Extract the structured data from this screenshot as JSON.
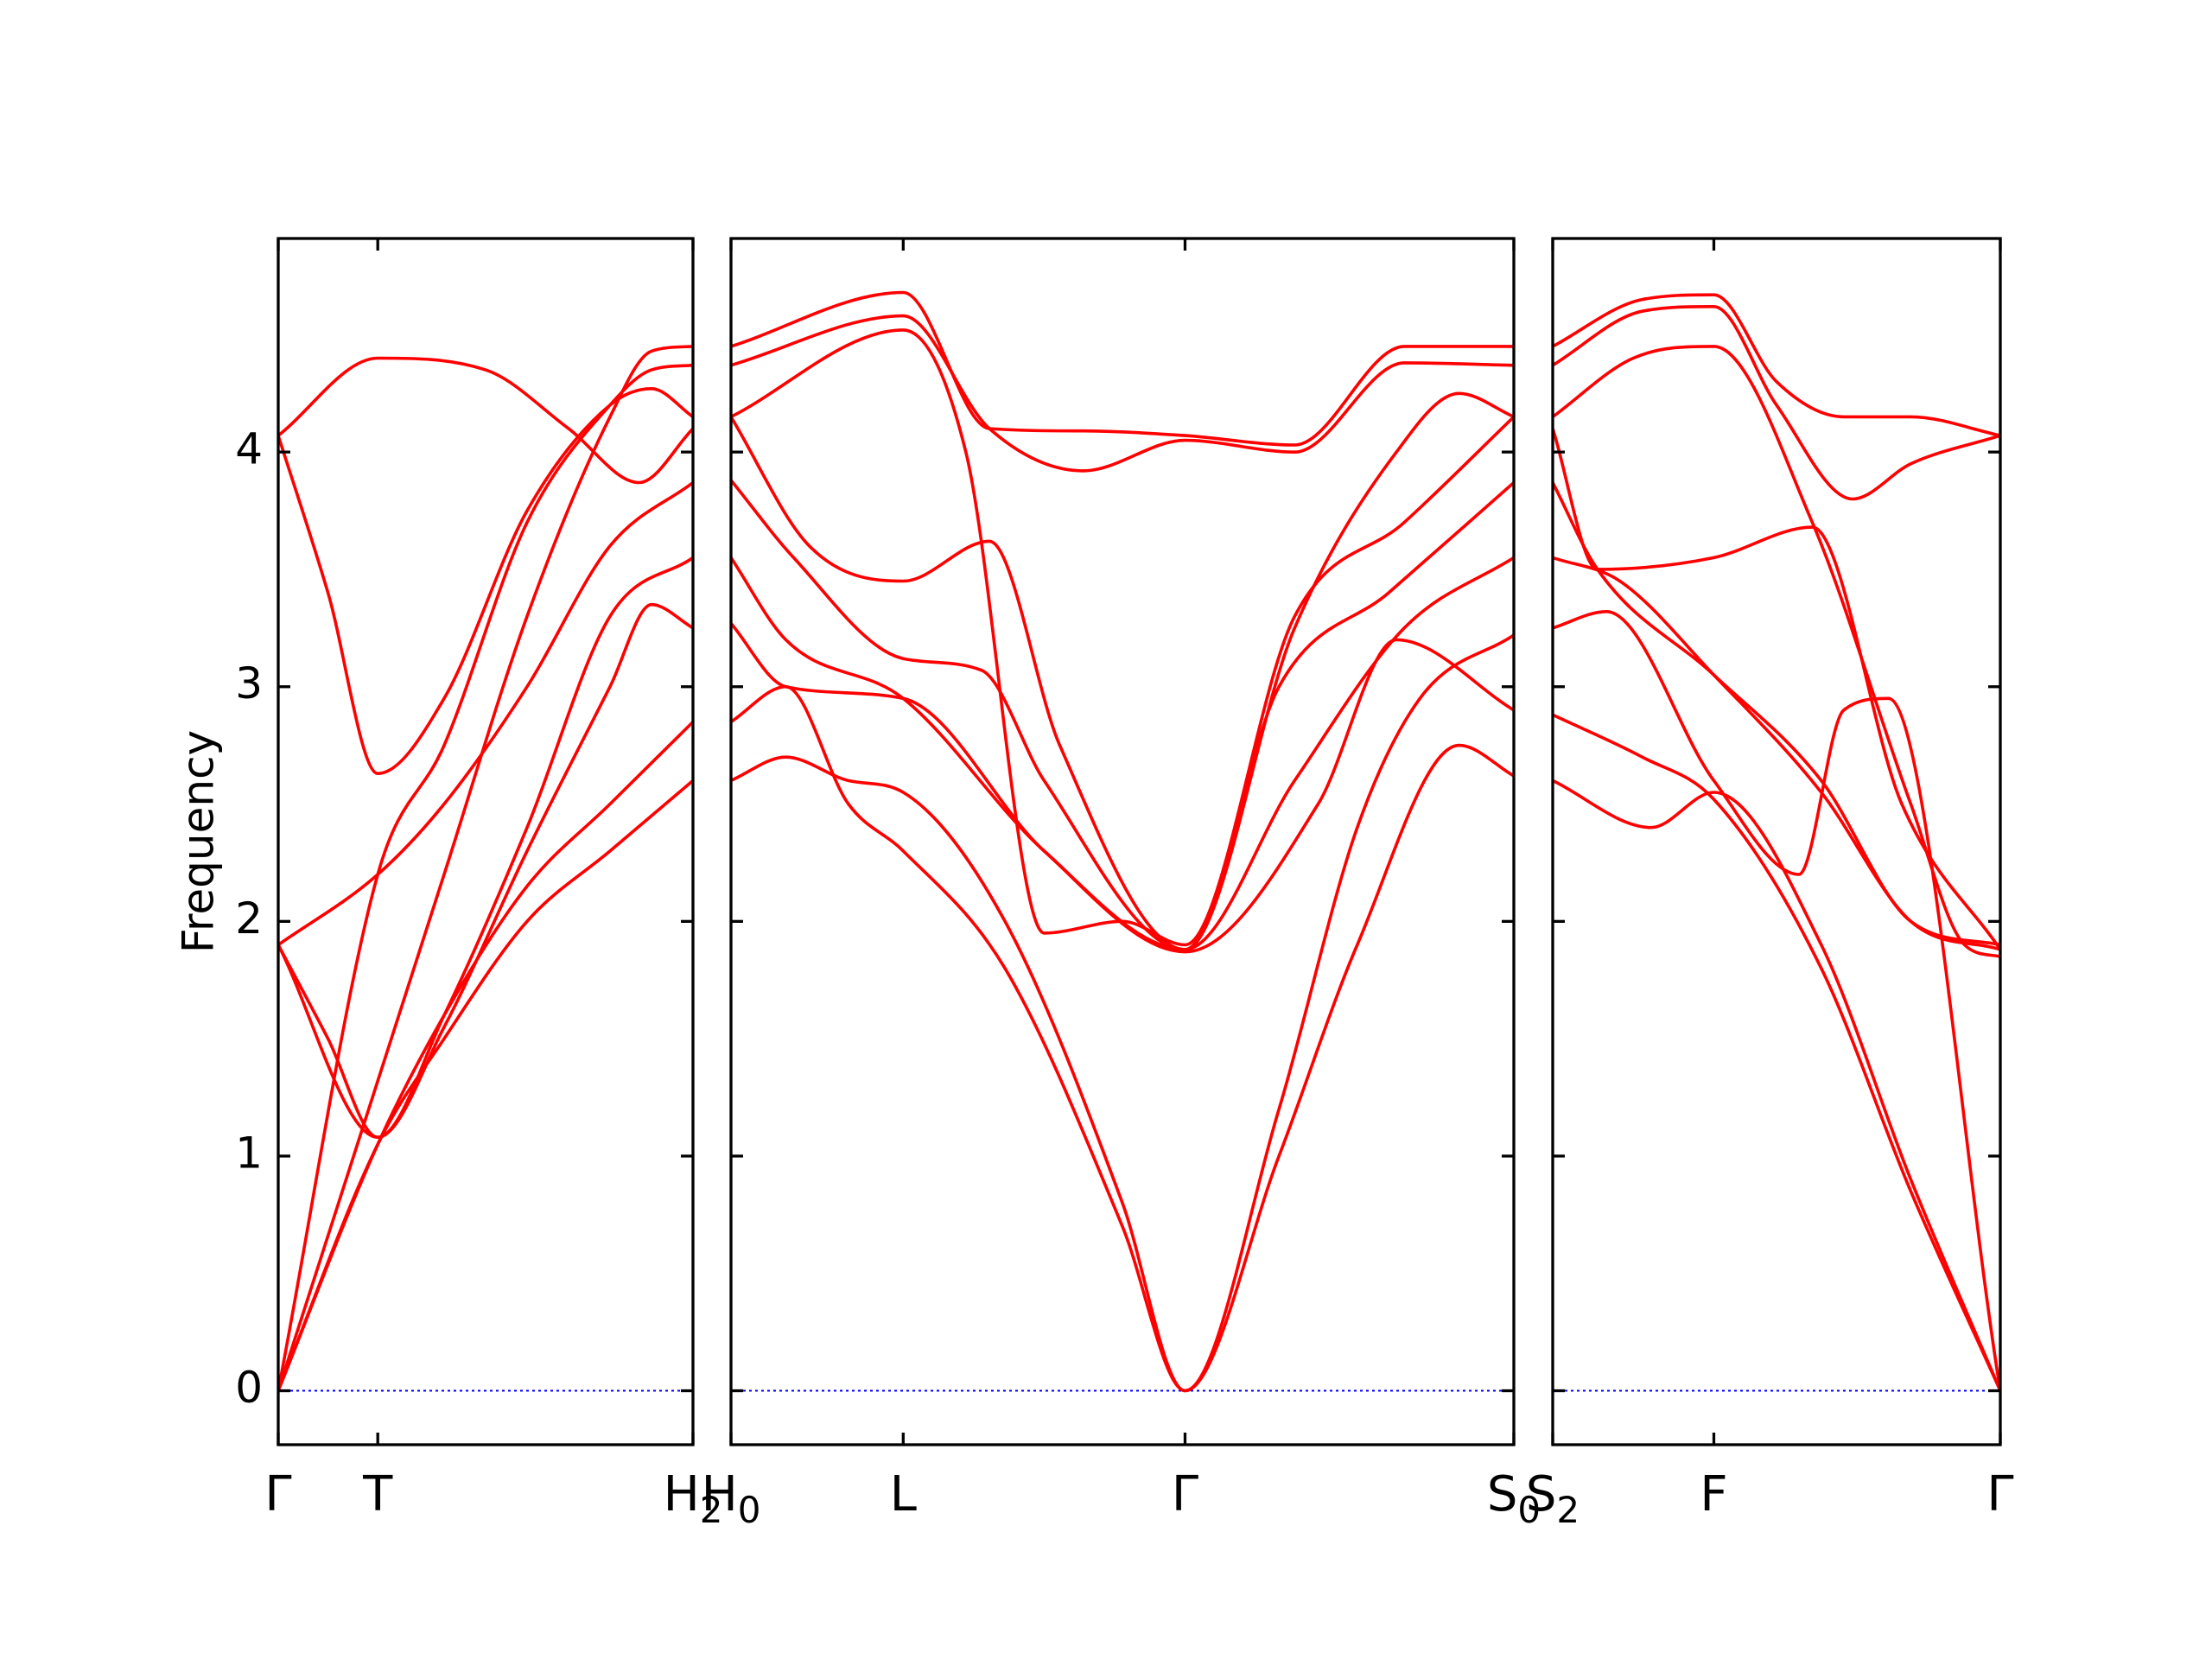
{
  "chart_data": {
    "type": "line",
    "ylabel": "Frequency",
    "ylim": [
      -0.23,
      4.91
    ],
    "yticks": [
      "0",
      "1",
      "2",
      "3",
      "4"
    ],
    "grid": false,
    "legend": "none",
    "colors": {
      "bands": "#ff0000",
      "zero_line": "#0000ff",
      "axes": "#000000"
    },
    "panels": [
      {
        "name": "Γ–T–H2",
        "x_range": [
          0,
          1.0
        ],
        "xticks": [
          {
            "x": 0.0,
            "label": "Γ",
            "sub": ""
          },
          {
            "x": 0.24,
            "label": "T",
            "sub": ""
          },
          {
            "x": 1.0,
            "label": "H",
            "sub": "2"
          }
        ],
        "series": [
          {
            "x": [
              0,
              0.24,
              0.4,
              0.6,
              0.8,
              1.0
            ],
            "values": [
              0,
              1.05,
              1.6,
              2.15,
              2.5,
              2.85
            ]
          },
          {
            "x": [
              0,
              0.24,
              0.4,
              0.6,
              0.8,
              1.0
            ],
            "values": [
              0,
              1.05,
              1.5,
              2.0,
              2.3,
              2.6
            ]
          },
          {
            "x": [
              0,
              0.24,
              0.4,
              0.6,
              0.8,
              0.9,
              1.0
            ],
            "values": [
              1.9,
              1.08,
              1.55,
              2.3,
              3.0,
              3.35,
              3.25
            ]
          },
          {
            "x": [
              0,
              0.12,
              0.24,
              0.4,
              0.6,
              0.8,
              1.0
            ],
            "values": [
              1.9,
              1.5,
              1.08,
              1.6,
              2.4,
              3.3,
              3.55
            ]
          },
          {
            "x": [
              0,
              0.24,
              0.4,
              0.6,
              0.8,
              1.0
            ],
            "values": [
              1.9,
              2.2,
              2.5,
              3.0,
              3.6,
              3.87
            ]
          },
          {
            "x": [
              0,
              0.24,
              0.4,
              0.6,
              0.8,
              0.9,
              1.0
            ],
            "values": [
              0,
              2.2,
              2.75,
              3.7,
              4.2,
              4.35,
              4.37
            ]
          },
          {
            "x": [
              0,
              0.12,
              0.24,
              0.4,
              0.6,
              0.8,
              0.9,
              1.0
            ],
            "values": [
              4.07,
              3.4,
              2.63,
              2.95,
              3.75,
              4.2,
              4.27,
              4.15
            ]
          },
          {
            "x": [
              0,
              0.24,
              0.5,
              0.7,
              0.87,
              1.0
            ],
            "values": [
              4.07,
              4.4,
              4.35,
              4.1,
              3.87,
              4.1
            ]
          },
          {
            "x": [
              0,
              0.4,
              0.6,
              0.8,
              0.9,
              1.0
            ],
            "values": [
              0,
              2.2,
              3.3,
              4.15,
              4.43,
              4.45
            ]
          }
        ]
      },
      {
        "name": "H0–L–Γ–S0",
        "x_range": [
          0,
          1.0
        ],
        "xticks": [
          {
            "x": 0.0,
            "label": "H",
            "sub": "0"
          },
          {
            "x": 0.22,
            "label": "L",
            "sub": ""
          },
          {
            "x": 0.58,
            "label": "Γ",
            "sub": ""
          },
          {
            "x": 1.0,
            "label": "S",
            "sub": "0"
          }
        ],
        "series": [
          {
            "x": [
              0,
              0.07,
              0.15,
              0.22,
              0.35,
              0.5,
              0.58,
              0.7,
              0.8,
              0.93,
              1.0
            ],
            "values": [
              2.6,
              2.7,
              2.6,
              2.55,
              2.0,
              0.8,
              0,
              1.0,
              1.9,
              2.75,
              2.62
            ]
          },
          {
            "x": [
              0,
              0.07,
              0.15,
              0.22,
              0.35,
              0.5,
              0.58,
              0.7,
              0.8,
              0.88,
              1.0
            ],
            "values": [
              2.85,
              3.0,
              2.5,
              2.3,
              1.8,
              0.7,
              0,
              1.2,
              2.4,
              2.95,
              3.22
            ]
          },
          {
            "x": [
              0,
              0.07,
              0.22,
              0.4,
              0.58,
              0.75,
              0.85,
              1.0
            ],
            "values": [
              3.27,
              3.0,
              2.95,
              2.3,
              1.87,
              2.5,
              3.2,
              2.9
            ]
          },
          {
            "x": [
              0,
              0.07,
              0.22,
              0.4,
              0.58,
              0.72,
              0.86,
              1.0
            ],
            "values": [
              3.55,
              3.2,
              2.95,
              2.3,
              1.88,
              2.6,
              3.25,
              3.55
            ]
          },
          {
            "x": [
              0,
              0.08,
              0.22,
              0.32,
              0.4,
              0.58,
              0.7,
              0.84,
              1.0
            ],
            "values": [
              3.88,
              3.55,
              3.12,
              3.07,
              2.6,
              1.88,
              3.0,
              3.4,
              3.87
            ]
          },
          {
            "x": [
              0,
              0.1,
              0.22,
              0.33,
              0.42,
              0.58,
              0.72,
              0.85,
              0.93,
              1.0
            ],
            "values": [
              4.15,
              3.6,
              3.45,
              3.62,
              2.75,
              1.88,
              3.25,
              4.0,
              4.25,
              4.15
            ]
          },
          {
            "x": [
              0,
              0.22,
              0.3,
              0.4,
              0.5,
              0.58,
              0.72,
              0.86,
              1.0
            ],
            "values": [
              4.15,
              4.52,
              4.0,
              1.95,
              2.0,
              1.9,
              3.3,
              3.7,
              4.15
            ]
          },
          {
            "x": [
              0,
              0.22,
              0.33,
              0.45,
              0.58,
              0.72,
              0.86,
              1.0
            ],
            "values": [
              4.37,
              4.58,
              4.1,
              3.92,
              4.05,
              4.0,
              4.38,
              4.37
            ]
          },
          {
            "x": [
              0,
              0.22,
              0.33,
              0.45,
              0.58,
              0.72,
              0.86,
              1.0
            ],
            "values": [
              4.45,
              4.68,
              4.1,
              4.09,
              4.07,
              4.03,
              4.45,
              4.45
            ]
          }
        ]
      },
      {
        "name": "S2–F–Γ",
        "x_range": [
          0,
          1.0
        ],
        "xticks": [
          {
            "x": 0.0,
            "label": "S",
            "sub": "2"
          },
          {
            "x": 0.36,
            "label": "F",
            "sub": ""
          },
          {
            "x": 1.0,
            "label": "Γ",
            "sub": ""
          }
        ],
        "series": [
          {
            "x": [
              0,
              0.22,
              0.36,
              0.6,
              0.8,
              1.0
            ],
            "values": [
              2.6,
              2.4,
              2.55,
              1.9,
              0.9,
              0
            ]
          },
          {
            "x": [
              0,
              0.2,
              0.36,
              0.6,
              0.8,
              1.0
            ],
            "values": [
              2.88,
              2.7,
              2.52,
              1.8,
              0.85,
              0
            ]
          },
          {
            "x": [
              0,
              0.12,
              0.36,
              0.55,
              0.65,
              0.75,
              1.0
            ],
            "values": [
              3.25,
              3.32,
              2.6,
              2.2,
              2.9,
              2.95,
              0
            ]
          },
          {
            "x": [
              0,
              0.15,
              0.36,
              0.6,
              0.8,
              1.0
            ],
            "values": [
              3.55,
              3.45,
              3.05,
              2.55,
              2.0,
              1.88
            ]
          },
          {
            "x": [
              0,
              0.1,
              0.36,
              0.6,
              0.8,
              1.0
            ],
            "values": [
              3.87,
              3.5,
              3.05,
              2.6,
              2.0,
              1.9
            ]
          },
          {
            "x": [
              0,
              0.1,
              0.36,
              0.58,
              0.78,
              1.0
            ],
            "values": [
              4.1,
              3.5,
              3.55,
              3.68,
              2.5,
              1.88
            ]
          },
          {
            "x": [
              0,
              0.18,
              0.36,
              0.58,
              0.8,
              0.92,
              1.0
            ],
            "values": [
              4.15,
              4.4,
              4.45,
              3.7,
              2.5,
              1.9,
              1.85
            ]
          },
          {
            "x": [
              0,
              0.2,
              0.36,
              0.5,
              0.67,
              0.8,
              1.0
            ],
            "values": [
              4.37,
              4.6,
              4.62,
              4.2,
              3.8,
              3.95,
              4.07
            ]
          },
          {
            "x": [
              0,
              0.2,
              0.36,
              0.5,
              0.65,
              0.8,
              1.0
            ],
            "values": [
              4.45,
              4.65,
              4.67,
              4.3,
              4.15,
              4.15,
              4.07
            ]
          }
        ]
      }
    ]
  }
}
